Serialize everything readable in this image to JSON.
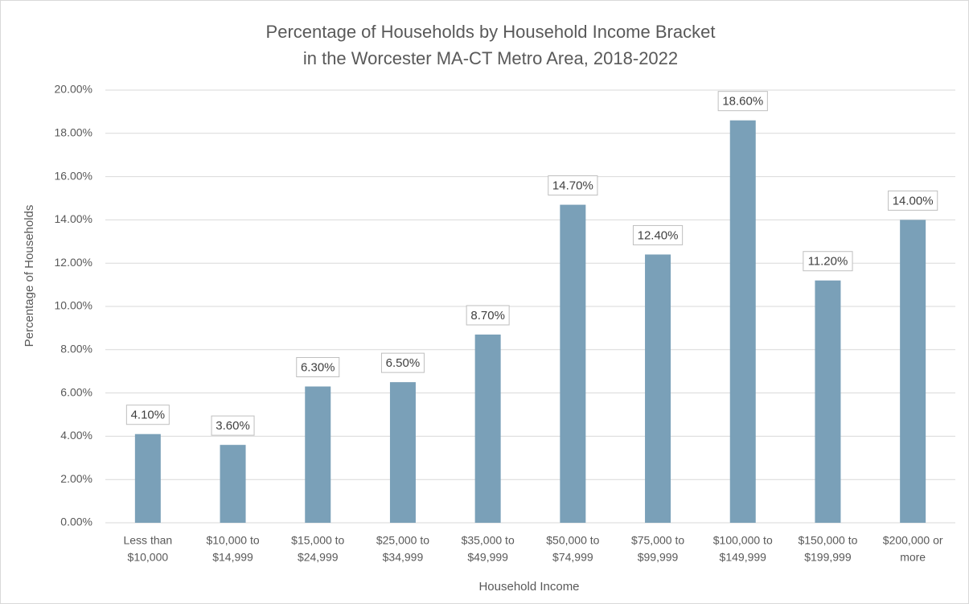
{
  "chart_data": {
    "type": "bar",
    "title": [
      "Percentage of Households by Household Income Bracket",
      "in the Worcester MA-CT Metro Area, 2018-2022"
    ],
    "x_label": "Household Income",
    "y_label": "Percentage of Households",
    "categories": [
      [
        "Less than",
        "$10,000"
      ],
      [
        "$10,000 to",
        "$14,999"
      ],
      [
        "$15,000 to",
        "$24,999"
      ],
      [
        "$25,000 to",
        "$34,999"
      ],
      [
        "$35,000 to",
        "$49,999"
      ],
      [
        "$50,000 to",
        "$74,999"
      ],
      [
        "$75,000 to",
        "$99,999"
      ],
      [
        "$100,000 to",
        "$149,999"
      ],
      [
        "$150,000 to",
        "$199,999"
      ],
      [
        "$200,000 or",
        "more"
      ]
    ],
    "values": [
      4.1,
      3.6,
      6.3,
      6.5,
      8.7,
      14.7,
      12.4,
      18.6,
      11.2,
      14.0
    ],
    "value_labels": [
      "4.10%",
      "3.60%",
      "6.30%",
      "6.50%",
      "8.70%",
      "14.70%",
      "12.40%",
      "18.60%",
      "11.20%",
      "14.00%"
    ],
    "color": "#7aa0b8",
    "ylim": [
      0,
      20
    ],
    "yticks": [
      {
        "value": 0,
        "label": "0.00%"
      },
      {
        "value": 2,
        "label": "2.00%"
      },
      {
        "value": 4,
        "label": "4.00%"
      },
      {
        "value": 6,
        "label": "6.00%"
      },
      {
        "value": 8,
        "label": "8.00%"
      },
      {
        "value": 10,
        "label": "10.00%"
      },
      {
        "value": 12,
        "label": "12.00%"
      },
      {
        "value": 14,
        "label": "14.00%"
      },
      {
        "value": 16,
        "label": "16.00%"
      },
      {
        "value": 18,
        "label": "18.00%"
      },
      {
        "value": 20,
        "label": "20.00%"
      }
    ],
    "grid": true
  }
}
